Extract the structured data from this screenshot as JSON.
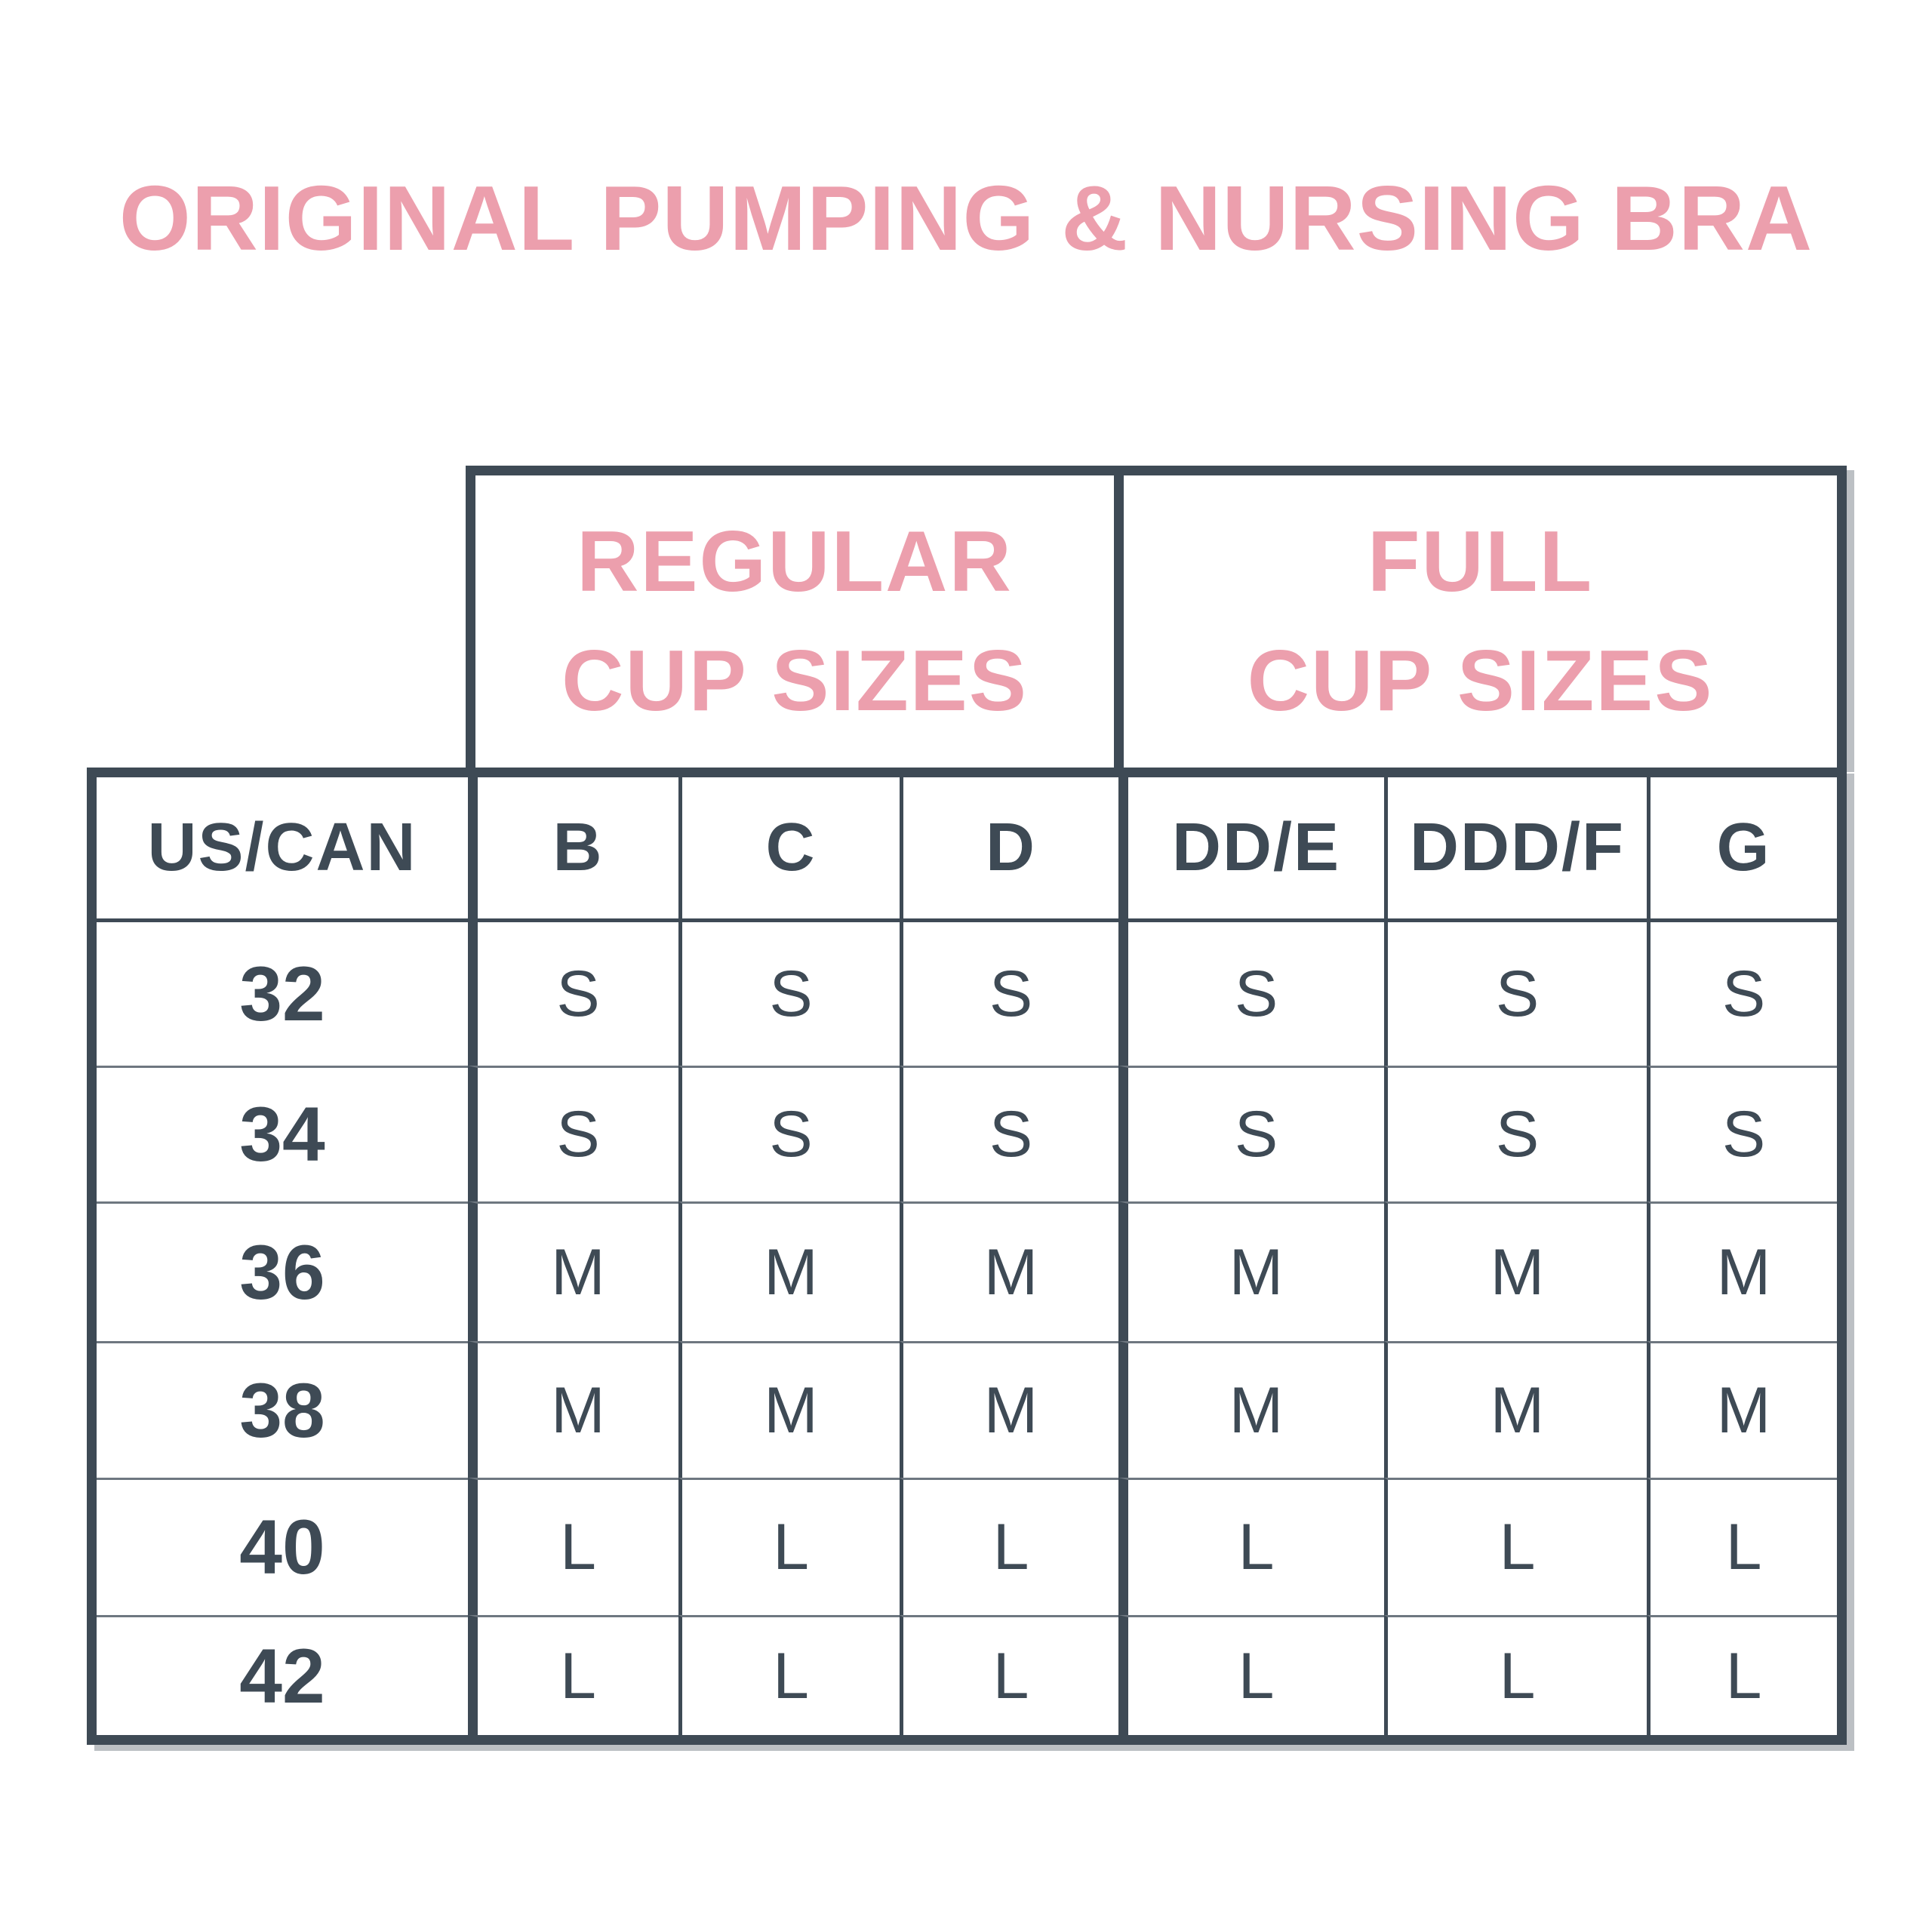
{
  "title": "ORIGINAL PUMPING & NURSING BRA",
  "colors": {
    "accent_pink": "#EC9FAD",
    "slate_text_and_borders": "#3E4A55",
    "row_divider_gray": "#6E7780",
    "background": "#FFFFFF"
  },
  "chart_data": {
    "type": "table",
    "title": "ORIGINAL PUMPING & NURSING BRA",
    "column_groups": [
      {
        "label": "REGULAR CUP SIZES",
        "label_lines": [
          "REGULAR",
          "CUP SIZES"
        ],
        "columns": [
          "B",
          "C",
          "D"
        ]
      },
      {
        "label": "FULL CUP SIZES",
        "label_lines": [
          "FULL",
          "CUP SIZES"
        ],
        "columns": [
          "DD/E",
          "DDD/F",
          "G"
        ]
      }
    ],
    "columns": [
      "US/CAN",
      "B",
      "C",
      "D",
      "DD/E",
      "DDD/F",
      "G"
    ],
    "rows": [
      {
        "band": "32",
        "values": [
          "S",
          "S",
          "S",
          "S",
          "S",
          "S"
        ]
      },
      {
        "band": "34",
        "values": [
          "S",
          "S",
          "S",
          "S",
          "S",
          "S"
        ]
      },
      {
        "band": "36",
        "values": [
          "M",
          "M",
          "M",
          "M",
          "M",
          "M"
        ]
      },
      {
        "band": "38",
        "values": [
          "M",
          "M",
          "M",
          "M",
          "M",
          "M"
        ]
      },
      {
        "band": "40",
        "values": [
          "L",
          "L",
          "L",
          "L",
          "L",
          "L"
        ]
      },
      {
        "band": "42",
        "values": [
          "L",
          "L",
          "L",
          "L",
          "L",
          "L"
        ]
      }
    ]
  }
}
